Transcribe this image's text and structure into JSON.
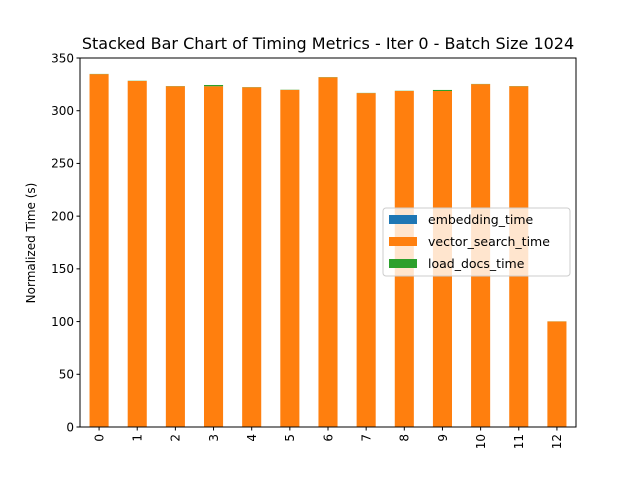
{
  "chart_data": {
    "type": "bar",
    "stacked": true,
    "title": "Stacked Bar Chart of Timing Metrics - Iter 0 - Batch Size 1024",
    "xlabel": "",
    "ylabel": "Normalized Time (s)",
    "categories": [
      "0",
      "1",
      "2",
      "3",
      "4",
      "5",
      "6",
      "7",
      "8",
      "9",
      "10",
      "11",
      "12"
    ],
    "ylim": [
      0,
      350
    ],
    "yticks": [
      0,
      50,
      100,
      150,
      200,
      250,
      300,
      350
    ],
    "grid": false,
    "legend_position": "center-right",
    "series": [
      {
        "name": "embedding_time",
        "color": "#1f77b4",
        "values": [
          0.2,
          0.2,
          0.2,
          0.2,
          0.2,
          0.2,
          0.2,
          0.2,
          0.2,
          0.2,
          0.2,
          0.2,
          0.1
        ]
      },
      {
        "name": "vector_search_time",
        "color": "#ff7f0e",
        "values": [
          334.5,
          328,
          323,
          323,
          322,
          319.5,
          331.5,
          316.5,
          318.5,
          318.5,
          325,
          323,
          100
        ]
      },
      {
        "name": "load_docs_time",
        "color": "#2ca02c",
        "values": [
          0.2,
          0.2,
          0.2,
          1.2,
          0.2,
          0.2,
          0.2,
          0.2,
          0.2,
          1.0,
          0.2,
          0.2,
          0.1
        ]
      }
    ]
  }
}
